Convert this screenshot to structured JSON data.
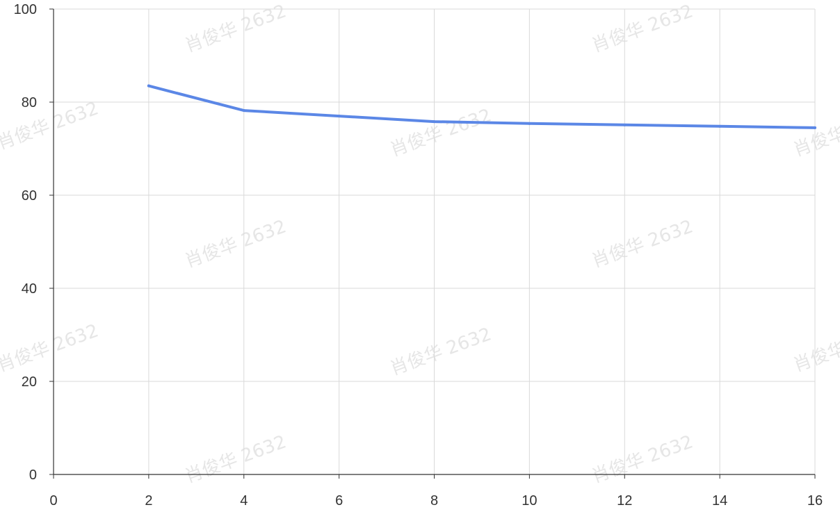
{
  "chart_data": {
    "type": "line",
    "title": "",
    "xlabel": "",
    "ylabel": "",
    "xlim": [
      0,
      16
    ],
    "ylim": [
      0,
      100
    ],
    "x_ticks": [
      "0",
      "2",
      "4",
      "6",
      "8",
      "10",
      "12",
      "14",
      "16"
    ],
    "y_ticks": [
      "0",
      "20",
      "40",
      "60",
      "80",
      "100"
    ],
    "grid": true,
    "legend": "none",
    "series": [
      {
        "color": "#5b87e6",
        "x": [
          2,
          4,
          6,
          8,
          10,
          12,
          14,
          16
        ],
        "y": [
          83.5,
          78.2,
          77.0,
          75.8,
          75.4,
          75.1,
          74.8,
          74.5
        ]
      }
    ]
  },
  "watermark": {
    "text": "肖俊华 2632"
  }
}
